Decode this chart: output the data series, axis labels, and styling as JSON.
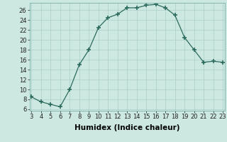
{
  "x": [
    3,
    4,
    5,
    6,
    7,
    8,
    9,
    10,
    11,
    12,
    13,
    14,
    15,
    16,
    17,
    18,
    19,
    20,
    21,
    22,
    23
  ],
  "y": [
    8.5,
    7.5,
    7.0,
    6.5,
    10.0,
    15.0,
    18.0,
    22.5,
    24.5,
    25.2,
    26.5,
    26.5,
    27.0,
    27.2,
    26.5,
    25.0,
    20.5,
    18.0,
    15.5,
    15.7,
    15.5
  ],
  "line_color": "#2d6b5e",
  "marker_color": "#2d6b5e",
  "bg_color": "#cce8e0",
  "grid_color": "#aacfc8",
  "xlabel": "Humidex (Indice chaleur)",
  "xlim_min": 3,
  "xlim_max": 23,
  "ylim_min": 6,
  "ylim_max": 27.5,
  "yticks": [
    6,
    8,
    10,
    12,
    14,
    16,
    18,
    20,
    22,
    24,
    26
  ],
  "xticks": [
    3,
    4,
    5,
    6,
    7,
    8,
    9,
    10,
    11,
    12,
    13,
    14,
    15,
    16,
    17,
    18,
    19,
    20,
    21,
    22,
    23
  ],
  "xlabel_fontsize": 7.5,
  "tick_fontsize": 6
}
